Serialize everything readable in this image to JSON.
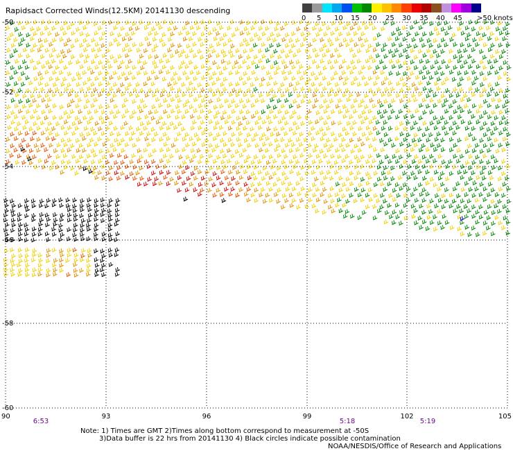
{
  "title": "Rapidsact Corrected Winds(12.5KM) 20141130 descending",
  "legend": {
    "labels": [
      "0",
      "5",
      "10",
      "15",
      "20",
      "25",
      "30",
      "35",
      "40",
      "45",
      ">50 knots"
    ],
    "colors": [
      "#404040",
      "#9a9a9a",
      "#00e5ff",
      "#00a8f0",
      "#0050f0",
      "#00c000",
      "#008800",
      "#fff000",
      "#ffc000",
      "#ff8a00",
      "#ff4000",
      "#e80000",
      "#b00000",
      "#8a5020",
      "#c090e0",
      "#ff00ff",
      "#a000e0",
      "#000088"
    ]
  },
  "map": {
    "lat_labels": [
      "-50",
      "-52",
      "-54",
      "-56",
      "-58",
      "-60"
    ],
    "lon_labels": [
      "90",
      "93",
      "96",
      "99",
      "102",
      "105"
    ],
    "time_labels": [
      "6:53",
      "5:18",
      "5:19"
    ],
    "barb_colors": {
      "light": "#008800",
      "moderate": "#f0d000",
      "fresh": "#e09000",
      "strong": "#e85000",
      "gale": "#d00000",
      "flagged": "#000000",
      "blue": "#0000c0"
    }
  },
  "notes": {
    "line1": "Note: 1) Times are GMT 2)Times along bottom correspond to measurement at -50S",
    "line2": "3)Data buffer is 22 hrs from 20141130 4) Black circles indicate possible contamination",
    "line3": "NOAA/NESDIS/Office of Research and Applications"
  }
}
